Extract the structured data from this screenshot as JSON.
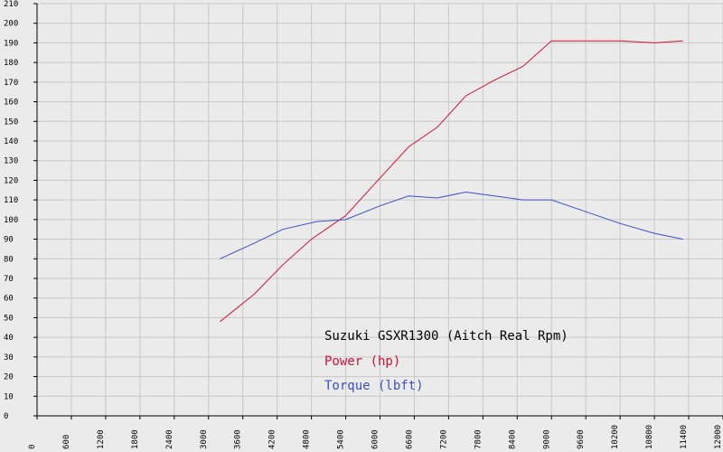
{
  "chart_data": {
    "type": "line",
    "title": "",
    "xlabel": "",
    "ylabel": "",
    "xlim": [
      0,
      12000
    ],
    "ylim": [
      0,
      210
    ],
    "x_ticks": [
      0,
      600,
      1200,
      1800,
      2400,
      3000,
      3600,
      4200,
      4800,
      5400,
      6000,
      6600,
      7200,
      7800,
      8400,
      9000,
      9600,
      10200,
      10800,
      11400,
      12000
    ],
    "y_ticks": [
      0,
      10,
      20,
      30,
      40,
      50,
      60,
      70,
      80,
      90,
      100,
      110,
      120,
      130,
      140,
      150,
      160,
      170,
      180,
      190,
      200,
      210
    ],
    "grid": true,
    "legend_title": "Suzuki GSXR1300 (Aitch Real Rpm)",
    "legend_position": "center-bottom",
    "series": [
      {
        "name": "Power (hp)",
        "color": "#d0103a",
        "x": [
          3200,
          3800,
          4300,
          4800,
          5400,
          5900,
          6500,
          7000,
          7500,
          8000,
          8500,
          9000,
          9600,
          10200,
          10800,
          11300
        ],
        "values": [
          48,
          62,
          77,
          90,
          102,
          118,
          137,
          147,
          163,
          171,
          178,
          191,
          191,
          191,
          190,
          191
        ]
      },
      {
        "name": "Torque (lbft)",
        "color": "#3a4fc8",
        "x": [
          3200,
          3800,
          4300,
          4900,
          5400,
          6000,
          6500,
          7000,
          7500,
          8000,
          8500,
          9000,
          9600,
          10200,
          10800,
          11300
        ],
        "values": [
          80,
          88,
          95,
          99,
          100,
          107,
          112,
          111,
          114,
          112,
          110,
          110,
          104,
          98,
          93,
          90
        ]
      }
    ]
  }
}
